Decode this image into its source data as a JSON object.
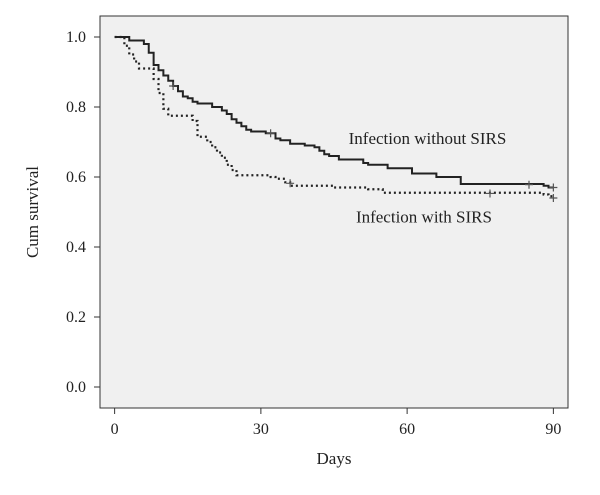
{
  "chart_data": {
    "type": "line",
    "xlabel": "Days",
    "ylabel": "Cum survival",
    "xlim": [
      -3,
      93
    ],
    "ylim": [
      -0.06,
      1.06
    ],
    "x_ticks": [
      0,
      30,
      60,
      90
    ],
    "y_ticks": [
      0.0,
      0.2,
      0.4,
      0.6,
      0.8,
      1.0
    ],
    "x_tick_labels": [
      "0",
      "30",
      "60",
      "90"
    ],
    "y_tick_labels": [
      "0.0",
      "0.2",
      "0.4",
      "0.6",
      "0.8",
      "1.0"
    ],
    "background": "#f0f0f0",
    "grid": false,
    "series": [
      {
        "name": "Infection without SIRS",
        "style": "solid",
        "color": "#222222",
        "label_anchor": {
          "x": 48,
          "y": 0.695
        },
        "steps": [
          [
            0,
            1.0
          ],
          [
            3,
            0.99
          ],
          [
            6,
            0.98
          ],
          [
            7,
            0.955
          ],
          [
            8,
            0.92
          ],
          [
            9,
            0.905
          ],
          [
            10,
            0.89
          ],
          [
            11,
            0.875
          ],
          [
            12,
            0.86
          ],
          [
            13,
            0.845
          ],
          [
            14,
            0.83
          ],
          [
            15,
            0.825
          ],
          [
            16,
            0.815
          ],
          [
            17,
            0.81
          ],
          [
            20,
            0.8
          ],
          [
            22,
            0.79
          ],
          [
            23,
            0.78
          ],
          [
            24,
            0.765
          ],
          [
            25,
            0.755
          ],
          [
            26,
            0.745
          ],
          [
            27,
            0.735
          ],
          [
            28,
            0.73
          ],
          [
            31,
            0.725
          ],
          [
            33,
            0.71
          ],
          [
            34,
            0.705
          ],
          [
            36,
            0.695
          ],
          [
            39,
            0.69
          ],
          [
            41,
            0.685
          ],
          [
            42,
            0.675
          ],
          [
            43,
            0.665
          ],
          [
            44,
            0.66
          ],
          [
            46,
            0.65
          ],
          [
            51,
            0.64
          ],
          [
            52,
            0.635
          ],
          [
            56,
            0.625
          ],
          [
            61,
            0.61
          ],
          [
            66,
            0.6
          ],
          [
            71,
            0.58
          ],
          [
            88,
            0.575
          ],
          [
            89,
            0.57
          ],
          [
            90,
            0.57
          ]
        ],
        "censor_marks": [
          [
            12,
            0.86
          ],
          [
            32,
            0.725
          ],
          [
            85,
            0.578
          ],
          [
            90,
            0.57
          ]
        ]
      },
      {
        "name": "Infection with SIRS",
        "style": "dotted",
        "color": "#222222",
        "label_anchor": {
          "x": 49.5,
          "y": 0.47
        },
        "steps": [
          [
            0,
            1.0
          ],
          [
            2,
            0.975
          ],
          [
            3,
            0.95
          ],
          [
            4,
            0.93
          ],
          [
            5,
            0.91
          ],
          [
            8,
            0.88
          ],
          [
            9,
            0.84
          ],
          [
            10,
            0.795
          ],
          [
            11,
            0.775
          ],
          [
            16,
            0.76
          ],
          [
            17,
            0.715
          ],
          [
            19,
            0.7
          ],
          [
            20,
            0.685
          ],
          [
            21,
            0.67
          ],
          [
            22,
            0.655
          ],
          [
            23,
            0.635
          ],
          [
            24,
            0.62
          ],
          [
            25,
            0.605
          ],
          [
            32,
            0.6
          ],
          [
            33,
            0.595
          ],
          [
            35,
            0.585
          ],
          [
            36,
            0.575
          ],
          [
            45,
            0.57
          ],
          [
            52,
            0.565
          ],
          [
            55,
            0.555
          ],
          [
            88,
            0.55
          ],
          [
            89,
            0.545
          ],
          [
            90,
            0.54
          ]
        ],
        "censor_marks": [
          [
            36,
            0.582
          ],
          [
            77,
            0.553
          ],
          [
            90,
            0.54
          ]
        ]
      }
    ]
  }
}
